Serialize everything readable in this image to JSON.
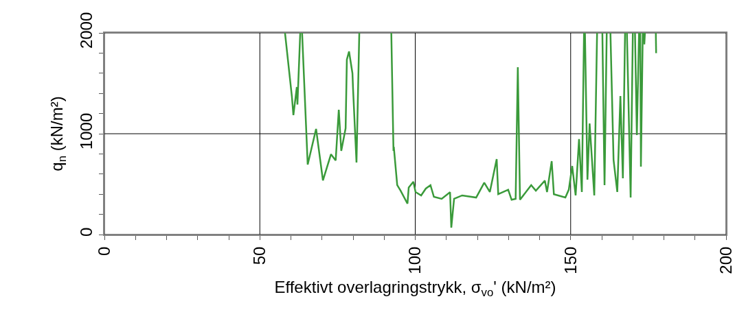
{
  "chart_data": {
    "type": "line",
    "xlabel": "Effektivt overlagringstrykk, σ$_{vo}$' (kN/m²)",
    "ylabel": "q$_{n}$ (kN/m²)",
    "xlim": [
      0,
      200
    ],
    "ylim": [
      0,
      2000
    ],
    "xticks": [
      0,
      {
        "value": 10,
        "label": null
      },
      {
        "value": 20,
        "label": null
      },
      {
        "value": 30,
        "label": null
      },
      {
        "value": 40,
        "label": null
      },
      50,
      {
        "value": 60,
        "label": null
      },
      {
        "value": 70,
        "label": null
      },
      {
        "value": 80,
        "label": null
      },
      {
        "value": 90,
        "label": null
      },
      100,
      {
        "value": 110,
        "label": null
      },
      {
        "value": 120,
        "label": null
      },
      {
        "value": 130,
        "label": null
      },
      {
        "value": 140,
        "label": null
      },
      150,
      {
        "value": 160,
        "label": null
      },
      {
        "value": 170,
        "label": null
      },
      {
        "value": 180,
        "label": null
      },
      {
        "value": 190,
        "label": null
      },
      200
    ],
    "yticks": [
      0,
      {
        "value": 200,
        "label": null
      },
      {
        "value": 400,
        "label": null
      },
      {
        "value": 600,
        "label": null
      },
      {
        "value": 800,
        "label": null
      },
      1000,
      {
        "value": 1200,
        "label": null
      },
      {
        "value": 1400,
        "label": null
      },
      {
        "value": 1600,
        "label": null
      },
      {
        "value": 1800,
        "label": null
      },
      2000
    ],
    "grid": true,
    "marker": "none",
    "line_style": "solid",
    "series": [
      {
        "color": "#3a9a3a",
        "x": [
          58.1,
          60.3,
          60.8,
          61.9,
          62.1,
          63.0,
          null,
          63.6,
          65.4,
          68.1,
          70.3,
          72.9,
          74.4,
          75.4,
          76.2,
          77.6,
          78.0,
          78.7,
          79.8,
          80.0,
          81.1,
          82.0,
          null,
          92.3,
          93.0,
          93.1,
          94.2,
          95.3,
          97.5,
          97.9,
          99.4,
          100.1,
          101.9,
          103.4,
          104.9,
          106.0,
          108.5,
          111.2,
          111.6,
          112.5,
          115.1,
          119.6,
          122.2,
          124.0,
          126.2,
          126.7,
          129.9,
          131.0,
          132.3,
          133.0,
          133.7,
          137.3,
          138.8,
          141.7,
          142.4,
          143.9,
          144.6,
          148.3,
          149.4,
          150.5,
          151.6,
          152.7,
          153.6,
          154.3,
          null,
          154.6,
          155.4,
          156.1,
          157.6,
          158.5,
          null,
          160.2,
          160.9,
          161.6,
          null,
          162.8,
          163.8,
          165.0,
          166.0,
          166.8,
          167.5,
          null,
          168.1,
          169.3,
          170.0,
          null,
          170.7,
          171.3,
          172.0,
          null,
          172.4,
          172.6,
          173.2,
          null,
          173.3,
          173.7,
          173.9,
          null,
          177.4,
          177.5
        ],
        "values": [
          2000,
          1374,
          1184,
          1463,
          1290,
          2000,
          null,
          2000,
          694,
          1048,
          537,
          796,
          735,
          1238,
          830,
          1054,
          1735,
          1816,
          1599,
          1440,
          714,
          2000,
          null,
          2000,
          830,
          870,
          490,
          435,
          306,
          466,
          524,
          422,
          388,
          456,
          490,
          374,
          354,
          420,
          68,
          354,
          388,
          367,
          514,
          422,
          748,
          400,
          445,
          345,
          354,
          1660,
          345,
          490,
          435,
          535,
          422,
          728,
          400,
          367,
          445,
          680,
          388,
          946,
          422,
          2000,
          null,
          2000,
          544,
          1102,
          388,
          2000,
          null,
          2000,
          490,
          2000,
          null,
          2000,
          741,
          422,
          1374,
          558,
          2000,
          null,
          2000,
          367,
          2000,
          null,
          2000,
          986,
          2000,
          null,
          2000,
          673,
          2000,
          null,
          2000,
          1887,
          2000,
          null,
          2000,
          1800
        ]
      }
    ]
  }
}
